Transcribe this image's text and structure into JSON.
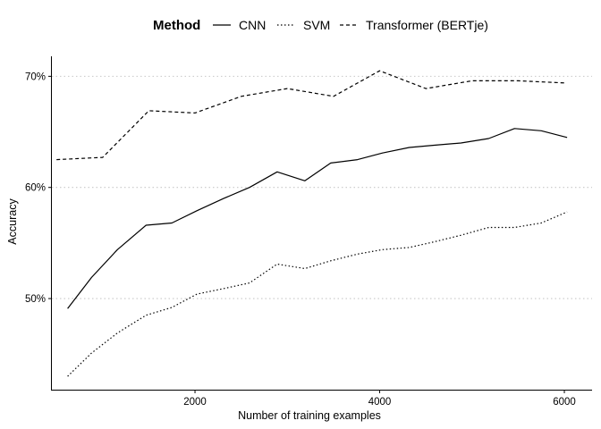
{
  "chart_data": {
    "type": "line",
    "title": "",
    "xlabel": "Number of training examples",
    "ylabel": "Accuracy",
    "xlim": [
      450,
      6300
    ],
    "ylim": [
      41.8,
      71.8
    ],
    "x_ticks": [
      2000,
      4000,
      6000
    ],
    "x_tick_labels": [
      "2000",
      "4000",
      "6000"
    ],
    "y_ticks": [
      50,
      60,
      70
    ],
    "y_tick_labels": [
      "50%",
      "60%",
      "70%"
    ],
    "grid": "horizontal dotted at y ticks",
    "legend": {
      "title": "Method",
      "placement": "top"
    },
    "series": [
      {
        "name": "CNN",
        "dash": "solid",
        "x": [
          620,
          880,
          1160,
          1470,
          1750,
          2020,
          2310,
          2590,
          2890,
          3190,
          3470,
          3760,
          4030,
          4320,
          4590,
          4880,
          5180,
          5460,
          5750,
          6030
        ],
        "y": [
          49.1,
          51.9,
          54.4,
          56.6,
          56.8,
          57.9,
          59.0,
          60.0,
          61.4,
          60.6,
          62.2,
          62.5,
          63.1,
          63.6,
          63.8,
          64.0,
          64.4,
          65.3,
          65.1,
          64.5
        ]
      },
      {
        "name": "SVM",
        "dash": "dotted",
        "x": [
          620,
          880,
          1160,
          1470,
          1750,
          2020,
          2310,
          2590,
          2890,
          3190,
          3470,
          3760,
          4030,
          4320,
          4590,
          4880,
          5180,
          5460,
          5750,
          6030
        ],
        "y": [
          43.0,
          45.1,
          46.9,
          48.5,
          49.2,
          50.4,
          50.9,
          51.4,
          53.1,
          52.7,
          53.4,
          54.0,
          54.4,
          54.6,
          55.1,
          55.7,
          56.4,
          56.4,
          56.8,
          57.8
        ]
      },
      {
        "name": "Transformer (BERTje)",
        "dash": "dashed",
        "x": [
          500,
          1000,
          1500,
          2000,
          2500,
          3000,
          3500,
          4000,
          4500,
          5000,
          5500,
          6000
        ],
        "y": [
          62.5,
          62.7,
          66.9,
          66.7,
          68.2,
          68.9,
          68.2,
          70.5,
          68.9,
          69.6,
          69.6,
          69.4
        ]
      }
    ]
  }
}
